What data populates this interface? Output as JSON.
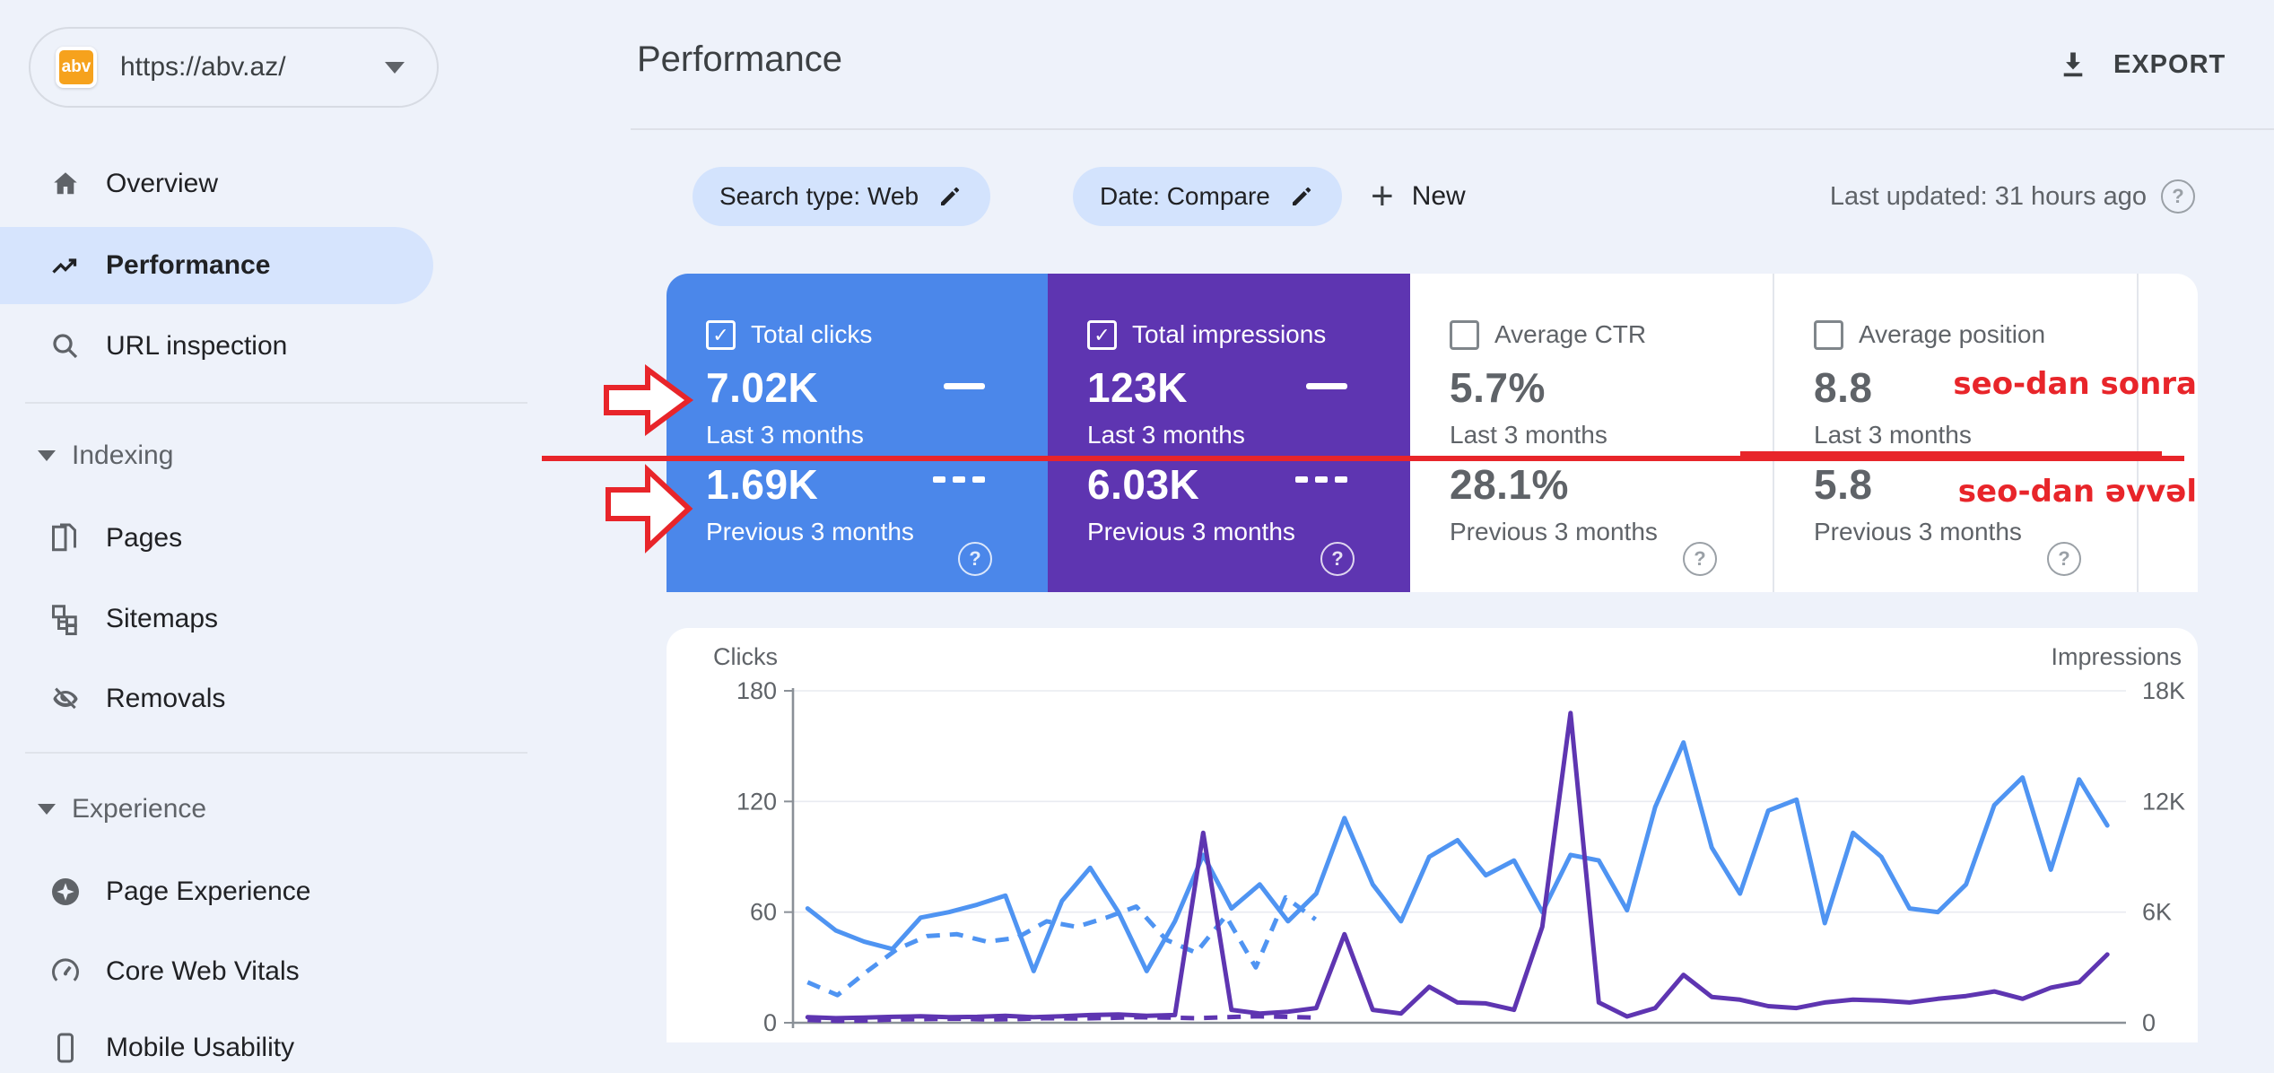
{
  "sidebar": {
    "property": {
      "url": "https://abv.az/",
      "logo": "abv"
    },
    "items": [
      {
        "label": "Overview",
        "icon": "home"
      },
      {
        "label": "Performance",
        "icon": "trending-up",
        "selected": true
      },
      {
        "label": "URL inspection",
        "icon": "search"
      },
      {
        "label": "Pages",
        "icon": "pages"
      },
      {
        "label": "Sitemaps",
        "icon": "sitemap"
      },
      {
        "label": "Removals",
        "icon": "eye-off"
      },
      {
        "label": "Page Experience",
        "icon": "star-circle"
      },
      {
        "label": "Core Web Vitals",
        "icon": "speedometer"
      },
      {
        "label": "Mobile Usability",
        "icon": "phone"
      }
    ],
    "sections": [
      {
        "label": "Indexing"
      },
      {
        "label": "Experience"
      }
    ]
  },
  "header": {
    "title": "Performance",
    "export_label": "EXPORT"
  },
  "filters": {
    "chip_search_type": "Search type: Web",
    "chip_date": "Date: Compare",
    "new_label": "New",
    "last_updated": "Last updated: 31 hours ago"
  },
  "cards": [
    {
      "title": "Total clicks",
      "checked": true,
      "theme": "blue",
      "current": "7.02K",
      "current_period": "Last 3 months",
      "previous": "1.69K",
      "previous_period": "Previous 3 months"
    },
    {
      "title": "Total impressions",
      "checked": true,
      "theme": "purple",
      "current": "123K",
      "current_period": "Last 3 months",
      "previous": "6.03K",
      "previous_period": "Previous 3 months"
    },
    {
      "title": "Average CTR",
      "checked": false,
      "theme": "white",
      "current": "5.7%",
      "current_period": "Last 3 months",
      "previous": "28.1%",
      "previous_period": "Previous 3 months"
    },
    {
      "title": "Average position",
      "checked": false,
      "theme": "white",
      "current": "8.8",
      "current_period": "Last 3 months",
      "previous": "5.8",
      "previous_period": "Previous 3 months"
    }
  ],
  "annotations": {
    "label_after_seo": "seo-dan sonra",
    "label_before_seo": "seo-dan əvvəl",
    "color": "#e8252a"
  },
  "chart_data": {
    "type": "line",
    "y_left": {
      "label": "Clicks",
      "max": 180,
      "ticks": [
        "0",
        "60",
        "120",
        "180"
      ]
    },
    "y_right": {
      "label": "Impressions",
      "max": 18000,
      "ticks": [
        "0",
        "6K",
        "12K",
        "18K"
      ]
    },
    "grid": true,
    "legend_position": "cards",
    "series": [
      {
        "name": "Clicks - Previous 3 months",
        "axis": "left",
        "style": "dashed",
        "color": "#4f94f2",
        "span": [
          0.011,
          0.392
        ],
        "values": [
          22,
          15,
          28,
          40,
          47,
          48,
          44,
          46,
          55,
          52,
          57,
          63,
          45,
          38,
          58,
          30,
          68,
          56
        ]
      },
      {
        "name": "Impressions - Previous 3 months",
        "axis": "right",
        "style": "dashed",
        "color": "#5e35b1",
        "span": [
          0.011,
          0.392
        ],
        "values": [
          150,
          100,
          120,
          180,
          200,
          220,
          180,
          200,
          250,
          230,
          260,
          300,
          280,
          250,
          300,
          350,
          320,
          280
        ]
      },
      {
        "name": "Clicks - Last 3 months",
        "axis": "left",
        "style": "solid",
        "color": "#4f94f2",
        "span": [
          0.011,
          0.986
        ],
        "values": [
          62,
          50,
          44,
          40,
          57,
          60,
          64,
          69,
          28,
          66,
          84,
          60,
          28,
          55,
          91,
          62,
          75,
          55,
          70,
          111,
          75,
          55,
          90,
          99,
          80,
          88,
          60,
          91,
          88,
          61,
          117,
          152,
          95,
          70,
          115,
          121,
          54,
          103,
          90,
          62,
          60,
          75,
          118,
          133,
          83,
          132,
          107
        ]
      },
      {
        "name": "Impressions - Last 3 months",
        "axis": "right",
        "style": "solid",
        "color": "#5e35b1",
        "span": [
          0.011,
          0.986
        ],
        "values": [
          300,
          250,
          280,
          320,
          350,
          300,
          320,
          380,
          300,
          350,
          420,
          450,
          380,
          420,
          10300,
          700,
          500,
          600,
          800,
          4800,
          700,
          500,
          1950,
          1100,
          1050,
          700,
          5200,
          16800,
          1100,
          340,
          800,
          2600,
          1400,
          1250,
          900,
          800,
          1100,
          1250,
          1200,
          1100,
          1300,
          1450,
          1700,
          1300,
          1900,
          2200,
          3700
        ]
      }
    ]
  }
}
